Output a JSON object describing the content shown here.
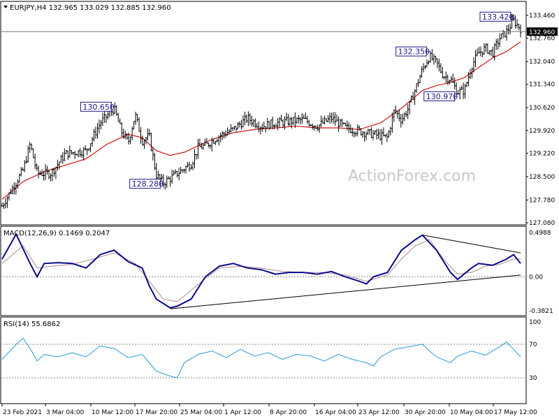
{
  "chart_data": [
    {
      "type": "candlestick",
      "header": "EURJPY,H4  132.965 133.029 132.885 132.960",
      "symbol": "EURJPY",
      "timeframe": "H4",
      "ohlc_last": {
        "open": 132.965,
        "high": 133.029,
        "low": 132.885,
        "close": 132.96
      },
      "current_price_label": "132.960",
      "watermark": "ActionForex.com",
      "y_ticks": [
        "133.460",
        "132.760",
        "132.040",
        "131.340",
        "130.620",
        "129.920",
        "129.220",
        "128.500",
        "127.780",
        "127.080"
      ],
      "ylim": [
        127.08,
        133.46
      ],
      "x_ticks": [
        "23 Feb 2021",
        "3 Mar 04:00",
        "10 Mar 12:00",
        "17 Mar 20:00",
        "25 Mar 04:00",
        "1 Apr 12:00",
        "8 Apr 20:00",
        "16 Apr 04:00",
        "23 Apr 12:00",
        "30 Apr 20:00",
        "10 May 04:00",
        "17 May 12:00"
      ],
      "annotations": [
        "130.650",
        "128.280",
        "132.350",
        "130.970",
        "133.420"
      ],
      "price_path": [
        [
          0,
          127.6
        ],
        [
          3,
          128.7
        ],
        [
          4,
          129.5
        ],
        [
          5,
          128.6
        ],
        [
          7,
          128.6
        ],
        [
          9,
          129.2
        ],
        [
          12,
          129.3
        ],
        [
          14,
          130.15
        ],
        [
          16,
          130.6
        ],
        [
          17,
          129.9
        ],
        [
          18,
          129.55
        ],
        [
          19,
          130.4
        ],
        [
          20,
          129.6
        ],
        [
          21,
          129.75
        ],
        [
          22,
          128.55
        ],
        [
          23,
          128.3
        ],
        [
          24,
          128.45
        ],
        [
          25,
          128.6
        ],
        [
          27,
          128.9
        ],
        [
          28,
          129.4
        ],
        [
          29,
          129.45
        ],
        [
          31,
          129.75
        ],
        [
          33,
          129.95
        ],
        [
          35,
          130.3
        ],
        [
          37,
          130.05
        ],
        [
          39,
          130.15
        ],
        [
          41,
          130.2
        ],
        [
          43,
          130.25
        ],
        [
          45,
          130.05
        ],
        [
          47,
          130.3
        ],
        [
          49,
          130.0
        ],
        [
          51,
          129.9
        ],
        [
          53,
          129.8
        ],
        [
          55,
          129.7
        ],
        [
          56,
          130.55
        ],
        [
          57,
          130.25
        ],
        [
          58,
          130.6
        ],
        [
          59,
          131.2
        ],
        [
          60,
          131.8
        ],
        [
          61,
          132.2
        ],
        [
          62,
          132.0
        ],
        [
          63,
          131.6
        ],
        [
          64,
          131.5
        ],
        [
          65,
          131.1
        ],
        [
          66,
          131.15
        ],
        [
          67,
          131.9
        ],
        [
          68,
          132.3
        ],
        [
          69,
          132.45
        ],
        [
          70,
          132.3
        ],
        [
          71,
          132.75
        ],
        [
          72,
          132.95
        ],
        [
          73,
          133.3
        ],
        [
          74,
          133.05
        ]
      ],
      "ma_path": [
        [
          0,
          127.8
        ],
        [
          3,
          128.35
        ],
        [
          6,
          128.65
        ],
        [
          9,
          128.85
        ],
        [
          12,
          129.05
        ],
        [
          15,
          129.5
        ],
        [
          18,
          129.8
        ],
        [
          20,
          129.7
        ],
        [
          22,
          129.3
        ],
        [
          24,
          129.15
        ],
        [
          26,
          129.25
        ],
        [
          28,
          129.45
        ],
        [
          30,
          129.65
        ],
        [
          33,
          129.85
        ],
        [
          36,
          129.95
        ],
        [
          39,
          130.0
        ],
        [
          42,
          130.05
        ],
        [
          45,
          130.0
        ],
        [
          48,
          130.0
        ],
        [
          51,
          129.95
        ],
        [
          54,
          130.15
        ],
        [
          57,
          130.6
        ],
        [
          60,
          131.15
        ],
        [
          62,
          131.3
        ],
        [
          64,
          131.4
        ],
        [
          66,
          131.55
        ],
        [
          68,
          131.85
        ],
        [
          70,
          132.15
        ],
        [
          72,
          132.35
        ],
        [
          74,
          132.65
        ]
      ],
      "indicators": [
        {
          "name": "MACD(12,26,9) 0.1469 0.2047",
          "y_ticks": [
            "0.4988",
            "0.00",
            "-0.3821"
          ],
          "ylim": [
            -0.3821,
            0.4988
          ],
          "macd_path": [
            [
              0,
              0.2
            ],
            [
              2,
              0.48
            ],
            [
              4,
              0.15
            ],
            [
              5,
              0.0
            ],
            [
              6,
              0.15
            ],
            [
              8,
              0.16
            ],
            [
              10,
              0.15
            ],
            [
              12,
              0.1
            ],
            [
              14,
              0.25
            ],
            [
              16,
              0.3
            ],
            [
              18,
              0.17
            ],
            [
              20,
              0.1
            ],
            [
              21,
              -0.1
            ],
            [
              22,
              -0.25
            ],
            [
              24,
              -0.35
            ],
            [
              25,
              -0.33
            ],
            [
              27,
              -0.25
            ],
            [
              29,
              0.0
            ],
            [
              31,
              0.12
            ],
            [
              33,
              0.15
            ],
            [
              35,
              0.1
            ],
            [
              37,
              0.08
            ],
            [
              39,
              0.03
            ],
            [
              41,
              0.05
            ],
            [
              43,
              0.05
            ],
            [
              45,
              0.03
            ],
            [
              47,
              0.06
            ],
            [
              49,
              0.0
            ],
            [
              51,
              -0.05
            ],
            [
              52,
              -0.08
            ],
            [
              53,
              0.0
            ],
            [
              55,
              0.05
            ],
            [
              57,
              0.3
            ],
            [
              59,
              0.42
            ],
            [
              60,
              0.47
            ],
            [
              62,
              0.3
            ],
            [
              64,
              0.05
            ],
            [
              65,
              -0.03
            ],
            [
              67,
              0.1
            ],
            [
              68,
              0.15
            ],
            [
              70,
              0.13
            ],
            [
              72,
              0.2
            ],
            [
              73,
              0.25
            ],
            [
              74,
              0.15
            ]
          ],
          "signal_path": [
            [
              0,
              0.15
            ],
            [
              3,
              0.35
            ],
            [
              5,
              0.1
            ],
            [
              7,
              0.12
            ],
            [
              10,
              0.14
            ],
            [
              13,
              0.2
            ],
            [
              16,
              0.27
            ],
            [
              19,
              0.15
            ],
            [
              21,
              -0.05
            ],
            [
              23,
              -0.25
            ],
            [
              25,
              -0.28
            ],
            [
              27,
              -0.15
            ],
            [
              29,
              -0.02
            ],
            [
              31,
              0.1
            ],
            [
              34,
              0.12
            ],
            [
              37,
              0.1
            ],
            [
              40,
              0.06
            ],
            [
              43,
              0.05
            ],
            [
              46,
              0.05
            ],
            [
              49,
              0.02
            ],
            [
              52,
              -0.05
            ],
            [
              55,
              0.02
            ],
            [
              57,
              0.2
            ],
            [
              59,
              0.35
            ],
            [
              61,
              0.42
            ],
            [
              63,
              0.2
            ],
            [
              65,
              0.03
            ],
            [
              67,
              0.05
            ],
            [
              69,
              0.12
            ],
            [
              71,
              0.14
            ],
            [
              73,
              0.2
            ],
            [
              74,
              0.2
            ]
          ],
          "trendlines": [
            {
              "from": [
                24,
                -0.36
              ],
              "to": [
                74,
                0.02
              ]
            },
            {
              "from": [
                60,
                0.47
              ],
              "to": [
                74,
                0.27
              ]
            }
          ]
        },
        {
          "name": "RSI(14) 55.6862",
          "y_ticks": [
            "100",
            "70",
            "30"
          ],
          "ylim": [
            0,
            100
          ],
          "levels": [
            70,
            30
          ],
          "rsi_path": [
            [
              0,
              52
            ],
            [
              2,
              70
            ],
            [
              3,
              78
            ],
            [
              4,
              65
            ],
            [
              5,
              50
            ],
            [
              6,
              58
            ],
            [
              8,
              55
            ],
            [
              10,
              60
            ],
            [
              12,
              55
            ],
            [
              14,
              68
            ],
            [
              16,
              65
            ],
            [
              18,
              54
            ],
            [
              20,
              58
            ],
            [
              22,
              38
            ],
            [
              24,
              32
            ],
            [
              25,
              30
            ],
            [
              26,
              48
            ],
            [
              28,
              58
            ],
            [
              30,
              62
            ],
            [
              32,
              54
            ],
            [
              34,
              64
            ],
            [
              36,
              56
            ],
            [
              38,
              60
            ],
            [
              40,
              52
            ],
            [
              42,
              58
            ],
            [
              44,
              56
            ],
            [
              46,
              50
            ],
            [
              48,
              58
            ],
            [
              50,
              52
            ],
            [
              52,
              48
            ],
            [
              53,
              44
            ],
            [
              54,
              55
            ],
            [
              56,
              64
            ],
            [
              58,
              67
            ],
            [
              60,
              70
            ],
            [
              61,
              62
            ],
            [
              62,
              55
            ],
            [
              64,
              48
            ],
            [
              65,
              56
            ],
            [
              67,
              62
            ],
            [
              69,
              57
            ],
            [
              71,
              67
            ],
            [
              72,
              73
            ],
            [
              73,
              64
            ],
            [
              74,
              55
            ]
          ]
        }
      ]
    }
  ]
}
